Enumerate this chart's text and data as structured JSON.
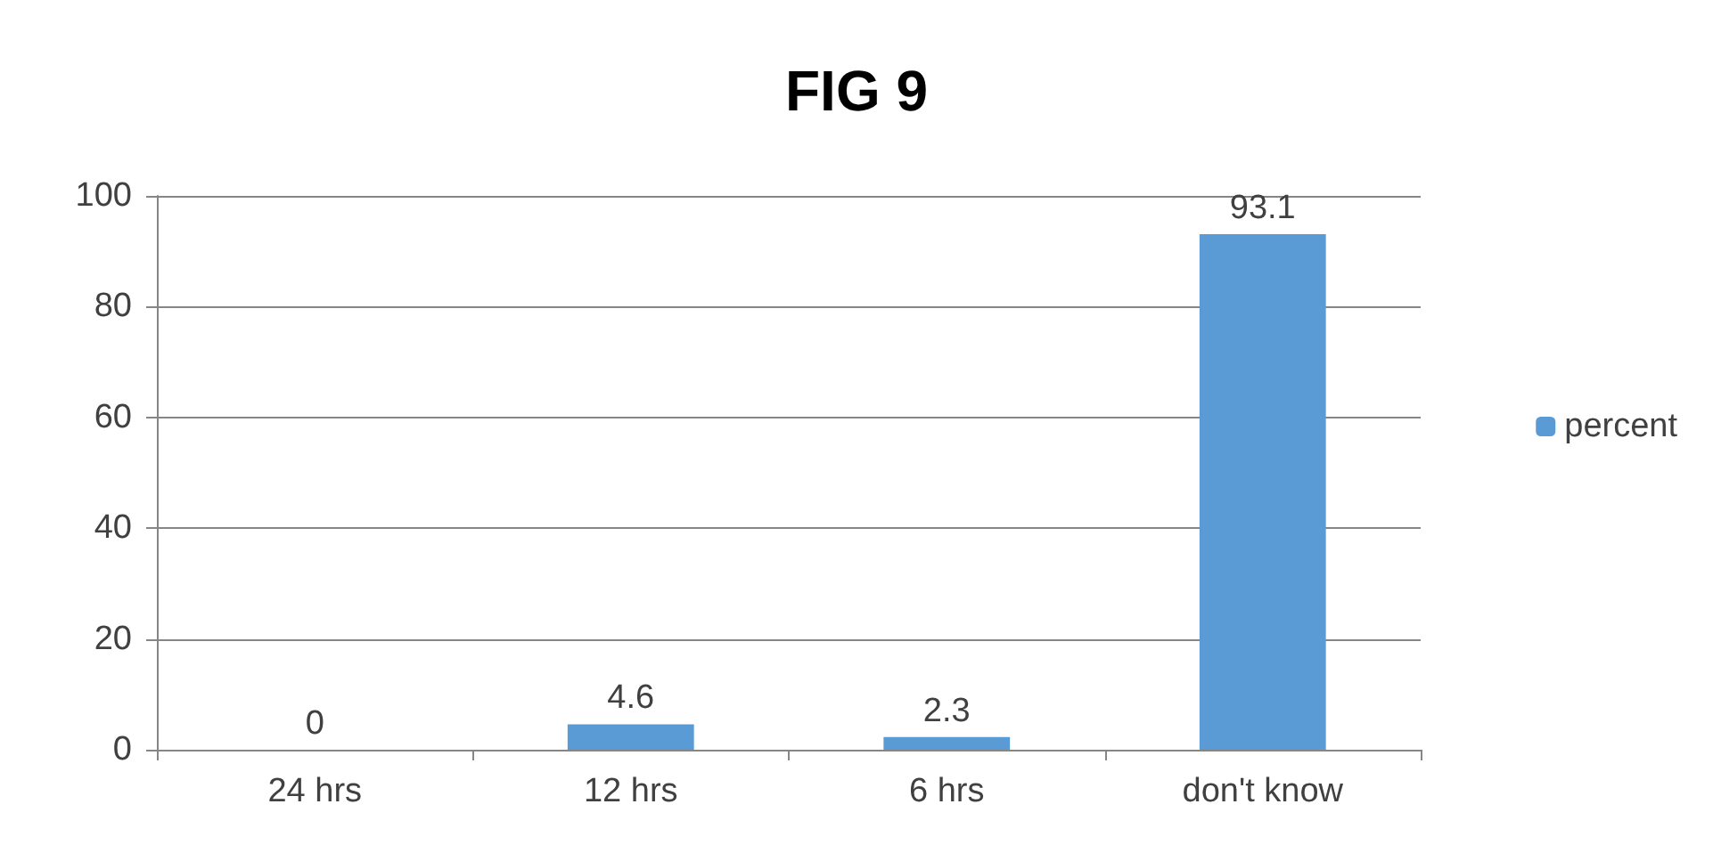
{
  "chart_data": {
    "type": "bar",
    "title": "FIG 9",
    "categories": [
      "24 hrs",
      "12 hrs",
      "6 hrs",
      "don't know"
    ],
    "series": [
      {
        "name": "percent",
        "color": "#5b9bd5",
        "values": [
          0,
          4.6,
          2.3,
          93.1
        ]
      }
    ],
    "ylim": [
      0,
      100
    ],
    "yticks": [
      0,
      20,
      40,
      60,
      80,
      100
    ],
    "grid": "y",
    "legend": "right",
    "data_labels": true
  }
}
